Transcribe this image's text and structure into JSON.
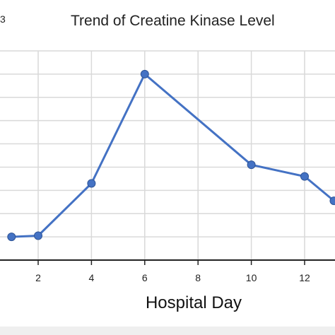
{
  "corner_label": "3",
  "chart_data": {
    "type": "line",
    "title": "Trend of Creatine Kinase Level",
    "xlabel": "Hospital Day",
    "ylabel": "",
    "x_ticks": [
      2,
      4,
      6,
      8,
      10,
      12
    ],
    "x_visible_range": [
      0.65,
      13.1
    ],
    "y_range": [
      0,
      9
    ],
    "grid": true,
    "series": [
      {
        "color": "#4472C4",
        "points": [
          {
            "x": 1,
            "y": 1.0
          },
          {
            "x": 2,
            "y": 1.05
          },
          {
            "x": 4,
            "y": 3.3
          },
          {
            "x": 6,
            "y": 8.0
          },
          {
            "x": 10,
            "y": 4.1
          },
          {
            "x": 12,
            "y": 3.6
          },
          {
            "x": 13.1,
            "y": 2.55
          }
        ]
      }
    ]
  }
}
